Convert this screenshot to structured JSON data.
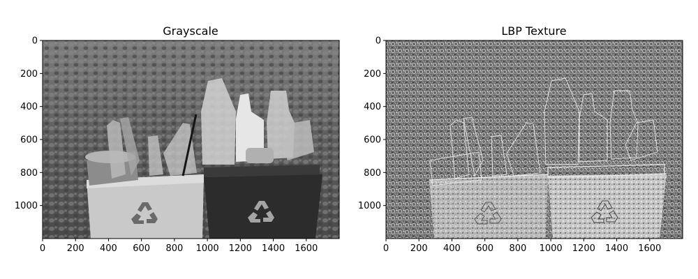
{
  "chart_data": [
    {
      "type": "image",
      "title": "Grayscale",
      "xlim": [
        0,
        1800
      ],
      "ylim": [
        1200,
        0
      ],
      "xticks": [
        0,
        200,
        400,
        600,
        800,
        1000,
        1200,
        1400,
        1600
      ],
      "yticks": [
        0,
        200,
        400,
        600,
        800,
        1000
      ],
      "colormap": "gray",
      "content": "grayscale photo"
    },
    {
      "type": "image",
      "title": "LBP Texture",
      "xlim": [
        0,
        1800
      ],
      "ylim": [
        1200,
        0
      ],
      "xticks": [
        0,
        200,
        400,
        600,
        800,
        1000,
        1200,
        1400,
        1600
      ],
      "yticks": [
        0,
        200,
        400,
        600,
        800,
        1000
      ],
      "colormap": "gray",
      "content": "local binary pattern texture map"
    }
  ]
}
